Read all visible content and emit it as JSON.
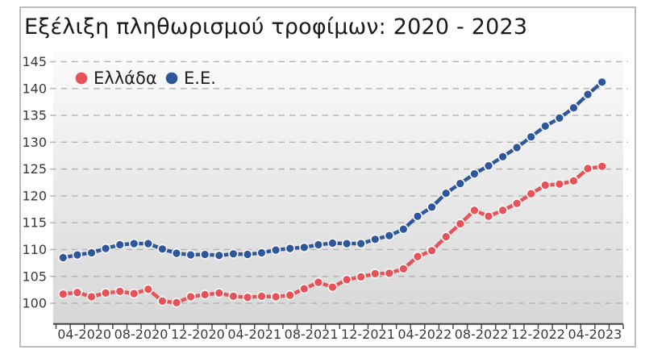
{
  "title": "Εξέλιξη πληθωρισμού τροφίμων: 2020 - 2023",
  "chart_data": {
    "type": "line",
    "title": "Εξέλιξη πληθωρισμού τροφίμων: 2020 - 2023",
    "x": [
      "02-2020",
      "03-2020",
      "04-2020",
      "05-2020",
      "06-2020",
      "07-2020",
      "08-2020",
      "09-2020",
      "10-2020",
      "11-2020",
      "12-2020",
      "01-2021",
      "02-2021",
      "03-2021",
      "04-2021",
      "05-2021",
      "06-2021",
      "07-2021",
      "08-2021",
      "09-2021",
      "10-2021",
      "11-2021",
      "12-2021",
      "01-2022",
      "02-2022",
      "03-2022",
      "04-2022",
      "05-2022",
      "06-2022",
      "07-2022",
      "08-2022",
      "09-2022",
      "10-2022",
      "11-2022",
      "12-2022",
      "01-2023",
      "02-2023",
      "03-2023",
      "04-2023"
    ],
    "x_tick_labels": [
      "04-2020",
      "08-2020",
      "12-2020",
      "04-2021",
      "08-2021",
      "12-2021",
      "04-2022",
      "08-2022",
      "12-2022",
      "04-2023"
    ],
    "series": [
      {
        "id": "eu",
        "name": "Ε.Ε.",
        "color": "#2e569b",
        "values": [
          108.5,
          109.0,
          109.4,
          110.2,
          110.9,
          111.1,
          111.1,
          110.1,
          109.3,
          109.0,
          109.1,
          108.9,
          109.2,
          109.1,
          109.4,
          109.9,
          110.2,
          110.4,
          110.9,
          111.2,
          111.1,
          111.1,
          111.9,
          112.6,
          113.8,
          116.2,
          117.9,
          120.5,
          122.3,
          124.1,
          125.6,
          127.3,
          129.0,
          131.0,
          133.0,
          134.5,
          136.4,
          138.9,
          141.2
        ]
      },
      {
        "id": "greece",
        "name": "Ελλάδα",
        "color": "#e85158",
        "values": [
          101.7,
          102.0,
          101.2,
          101.9,
          102.2,
          101.8,
          102.6,
          100.4,
          100.1,
          101.2,
          101.6,
          101.9,
          101.3,
          101.1,
          101.3,
          101.2,
          101.5,
          102.7,
          103.9,
          103.0,
          104.4,
          104.9,
          105.5,
          105.6,
          106.4,
          108.7,
          109.8,
          112.4,
          114.8,
          117.3,
          116.2,
          117.3,
          118.6,
          120.4,
          122.0,
          122.2,
          122.8,
          125.1,
          125.5
        ]
      }
    ],
    "yticks": [
      100,
      105,
      110,
      115,
      120,
      125,
      130,
      135,
      140,
      145
    ],
    "ylim": [
      96.25,
      146.8
    ],
    "grid": "horizontal-dashed",
    "legend_position": "top-left-inside",
    "legend_order": [
      "greece",
      "eu"
    ],
    "colors": {
      "grid": "#b2b2b2",
      "axis": "#3f3f3f",
      "tick_text": "#3a3a3a",
      "legend_text": "#1e1e1e",
      "marker_ring": "#f7f7f5",
      "plot_bg_top": "#fbfbfb",
      "plot_bg_bottom": "#d7d7d7"
    }
  }
}
